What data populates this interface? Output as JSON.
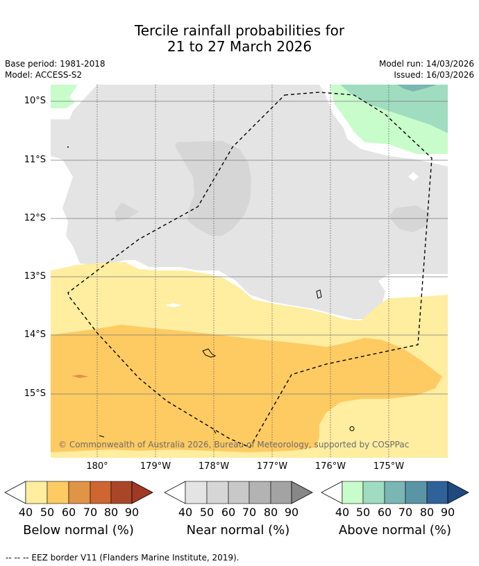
{
  "title_line1": "Tercile rainfall probabilities for",
  "title_line2": "21 to 27 March 2026",
  "base_period": "Base period: 1981-2018",
  "model": "Model: ACCESS-S2",
  "model_run": "Model run: 14/03/2026",
  "issued": "Issued: 16/03/2026",
  "lat_labels": [
    "10°S",
    "11°S",
    "12°S",
    "13°S",
    "14°S",
    "15°S"
  ],
  "lon_labels": [
    "180°",
    "179°W",
    "178°W",
    "177°W",
    "176°W",
    "175°W"
  ],
  "copyright": "© Commonwealth of Australia 2026, Bureau of Meteorology, supported by COSPPac",
  "colorbars": [
    {
      "label": "Below normal (%)",
      "ticks": [
        "40",
        "50",
        "60",
        "70",
        "80",
        "90"
      ],
      "colors": [
        "#ffeda0",
        "#fecb63",
        "#e09446",
        "#cd6630",
        "#aa4628",
        "#a03a24"
      ]
    },
    {
      "label": "Near normal (%)",
      "ticks": [
        "40",
        "50",
        "60",
        "70",
        "80",
        "90"
      ],
      "colors": [
        "#e4e4e4",
        "#d6d6d6",
        "#c8c8c8",
        "#b3b3b3",
        "#a3a3a3",
        "#878787"
      ]
    },
    {
      "label": "Above normal (%)",
      "ticks": [
        "40",
        "50",
        "60",
        "70",
        "80",
        "90"
      ],
      "colors": [
        "#c9fccb",
        "#a0dcbf",
        "#7ab6b3",
        "#5a95a6",
        "#30629a",
        "#1e4a80"
      ]
    }
  ],
  "footer": "--  --  -- EEZ border V11 (Flanders Marine Institute, 2019)."
}
